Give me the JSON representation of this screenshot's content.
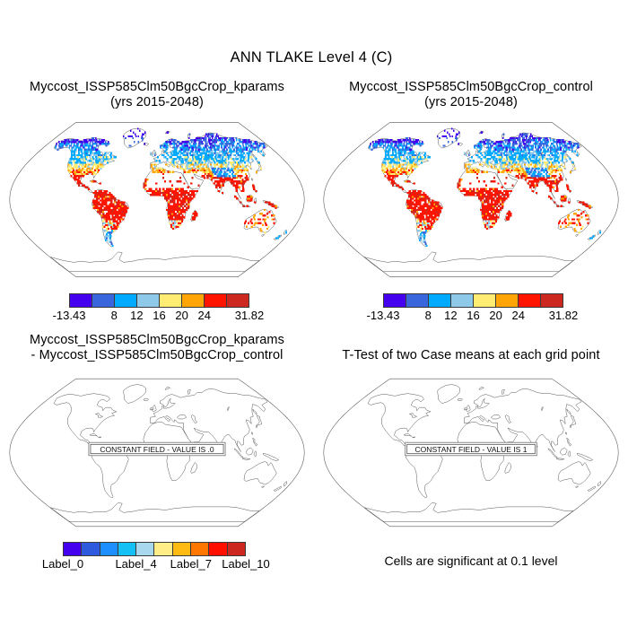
{
  "figure_title": "ANN TLAKE Level 4 (C)",
  "panels": {
    "top_left": {
      "title_lines": [
        "Myccost_ISSP585Clm50BgcCrop_kparams",
        "(yrs 2015-2048)"
      ]
    },
    "top_right": {
      "title_lines": [
        "Myccost_ISSP585Clm50BgcCrop_control",
        "(yrs 2015-2048)"
      ]
    },
    "bottom_left": {
      "title_lines": [
        "Myccost_ISSP585Clm50BgcCrop_kparams",
        "- Myccost_ISSP585Clm50BgcCrop_control"
      ],
      "annotation": "CONSTANT FIELD - VALUE IS .0"
    },
    "bottom_right": {
      "title_lines": [
        "T-Test of two Case means at each grid point"
      ],
      "annotation": "CONSTANT FIELD - VALUE IS 1",
      "footnote": "Cells are significant at 0.1 level"
    }
  },
  "colorbars": {
    "temperature": {
      "colors": [
        "#4400ee",
        "#3a66dd",
        "#00aaff",
        "#8fc9ea",
        "#ffec73",
        "#ffa505",
        "#ff1400",
        "#cd2820"
      ],
      "tick_labels": [
        "-13.43",
        "8",
        "12",
        "16",
        "20",
        "24",
        "31.82"
      ],
      "tick_positions_pct": [
        0,
        25,
        37.5,
        50,
        62.5,
        75,
        100
      ]
    },
    "difference": {
      "colors": [
        "#4400ee",
        "#2e5bdd",
        "#1e8fff",
        "#15c0f5",
        "#a8d8ee",
        "#ffee88",
        "#ffbb11",
        "#ff7700",
        "#ff0f00",
        "#cd2820"
      ],
      "tick_labels": [
        "Label_0",
        "Label_4",
        "Label_7",
        "Label_10"
      ],
      "tick_positions_pct": [
        0,
        40,
        70,
        100
      ]
    }
  },
  "chart_data": [
    {
      "type": "heatmap",
      "panel": "top_left",
      "title": "Myccost_ISSP585Clm50BgcCrop_kparams (yrs 2015-2048)",
      "variable": "ANN TLAKE Level 4 (C)",
      "projection": "Robinson world map",
      "value_min": -13.43,
      "value_max": 31.82,
      "colorbar_ticks": [
        "-13.43",
        "8",
        "12",
        "16",
        "20",
        "24",
        "31.82"
      ],
      "n_color_bins": 8,
      "pattern": "dark blue over arctic Canada/Scandinavia, cyan mid-latitudes and Siberia, yellow-orange band near 30-40N, red throughout tropics (Amazon, Africa, India, SE Asia), cyan in Patagonia; Sahara, Arabia, Greenland interior and Antarctica mostly empty"
    },
    {
      "type": "heatmap",
      "panel": "top_right",
      "title": "Myccost_ISSP585Clm50BgcCrop_control (yrs 2015-2048)",
      "variable": "ANN TLAKE Level 4 (C)",
      "projection": "Robinson world map",
      "value_min": -13.43,
      "value_max": 31.82,
      "colorbar_ticks": [
        "-13.43",
        "8",
        "12",
        "16",
        "20",
        "24",
        "31.82"
      ],
      "n_color_bins": 8,
      "pattern": "visually identical to kparams panel"
    },
    {
      "type": "heatmap",
      "panel": "bottom_left",
      "title": "Myccost_ISSP585Clm50BgcCrop_kparams - Myccost_ISSP585Clm50BgcCrop_control",
      "projection": "Robinson world map",
      "constant_field_value": ".0",
      "annotation": "CONSTANT FIELD - VALUE IS .0",
      "colorbar_ticks": [
        "Label_0",
        "Label_4",
        "Label_7",
        "Label_10"
      ],
      "n_color_bins": 10
    },
    {
      "type": "heatmap",
      "panel": "bottom_right",
      "title": "T-Test of two Case means at each grid point",
      "projection": "Robinson world map",
      "constant_field_value": "1",
      "annotation": "CONSTANT FIELD - VALUE IS 1",
      "footnote": "Cells are significant at 0.1 level"
    }
  ]
}
